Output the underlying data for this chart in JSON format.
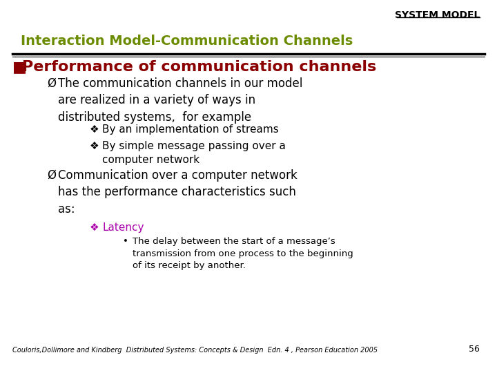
{
  "bg_color": "#ffffff",
  "header_text": "SYSTEM MODEL",
  "header_color": "#000000",
  "header_fontsize": 10,
  "subtitle_text": "Interaction Model-Communication Channels",
  "subtitle_color": "#6b8c00",
  "subtitle_fontsize": 14,
  "section_text": " Performance of communication channels",
  "section_bullet": "■",
  "section_color": "#8b0000",
  "section_fontsize": 16,
  "line_color": "#000000",
  "body_fontsize": 12,
  "sub_fontsize": 11,
  "subsub_fontsize": 9.5,
  "latency_color": "#aa00aa",
  "footer_text": "Couloris,Dollimore and Kindberg  Distributed Systems: Concepts & Design  Edn. 4 , Pearson Education 2005",
  "footer_color": "#000000",
  "footer_fontsize": 7,
  "page_number": "56",
  "page_number_fontsize": 9
}
